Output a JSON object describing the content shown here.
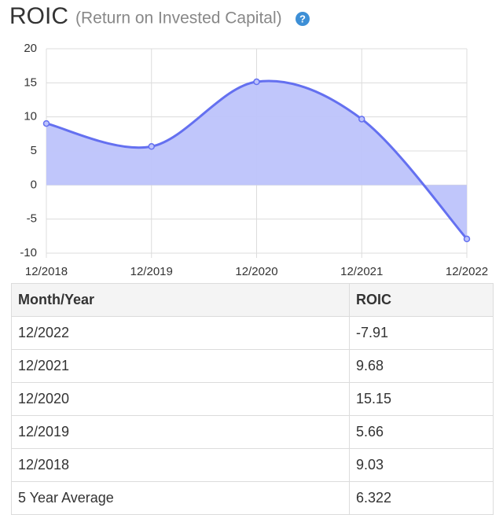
{
  "chart_data": {
    "type": "area",
    "title": "ROIC",
    "subtitle": "(Return on Invested Capital)",
    "help_icon": "?",
    "categories": [
      "12/2018",
      "12/2019",
      "12/2020",
      "12/2021",
      "12/2022"
    ],
    "values": [
      9.03,
      5.66,
      15.15,
      9.68,
      -7.91
    ],
    "color": "#6470f0",
    "fill": "#bdc3fb",
    "ylim": [
      -10,
      20
    ],
    "yticks": [
      -10,
      -5,
      0,
      5,
      10,
      15,
      20
    ],
    "grid": true
  },
  "table": {
    "header": [
      "Month/Year",
      "ROIC"
    ],
    "rows": [
      [
        "12/2022",
        -7.91
      ],
      [
        "12/2021",
        9.68
      ],
      [
        "12/2020",
        15.15
      ],
      [
        "12/2019",
        5.66
      ],
      [
        "12/2018",
        9.03
      ],
      [
        "5 Year Average",
        6.322
      ]
    ]
  }
}
